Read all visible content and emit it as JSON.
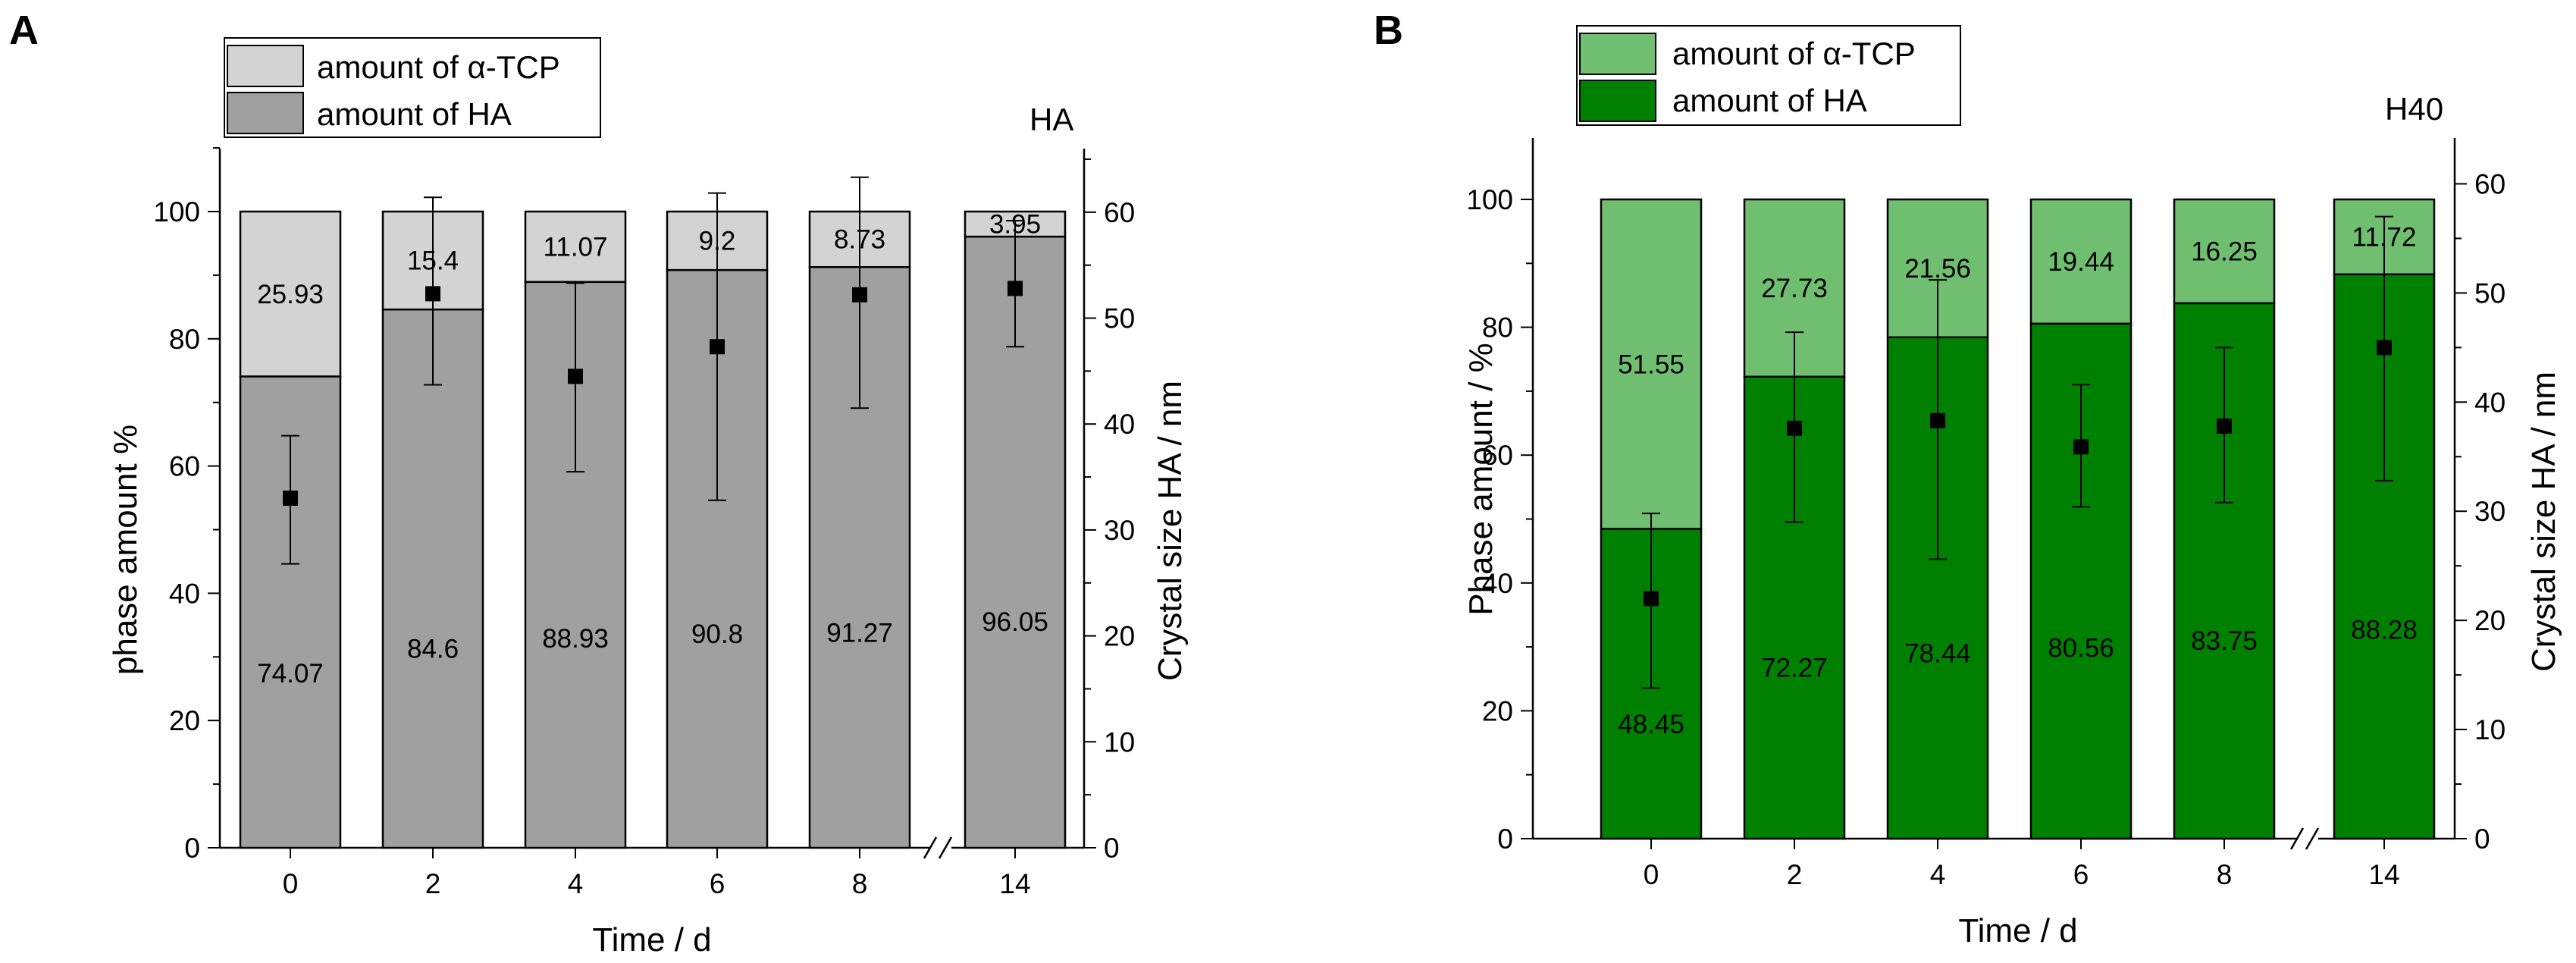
{
  "chart_data": [
    {
      "type": "bar",
      "stacked": true,
      "panel_label": "A",
      "sample_label": "HA",
      "categories": [
        "0",
        "2",
        "4",
        "6",
        "8",
        "14"
      ],
      "axis_break_between": [
        "8",
        "14"
      ],
      "xlabel": "Time / d",
      "ylabel": "phase amount %",
      "ylabel_right": "Crystal size HA / nm",
      "ylim": [
        0,
        110
      ],
      "ylim_right": [
        0,
        66
      ],
      "yticks": [
        0,
        20,
        40,
        60,
        80,
        100
      ],
      "yticks_right": [
        0,
        10,
        20,
        30,
        40,
        50,
        60
      ],
      "series": [
        {
          "name": "amount of HA",
          "color": "#a0a0a0",
          "values": [
            74.07,
            84.6,
            88.93,
            90.8,
            91.27,
            96.05
          ],
          "labels": [
            "74.07",
            "84.6",
            "88.93",
            "90.8",
            "91.27",
            "96.05"
          ]
        },
        {
          "name": "amount of α-TCP",
          "color": "#d3d3d3",
          "values": [
            25.93,
            15.4,
            11.07,
            9.2,
            8.73,
            3.95
          ],
          "labels": [
            "25.93",
            "15.4",
            "11.07",
            "9.2",
            "8.73",
            "3.95"
          ]
        }
      ],
      "crystal_size": {
        "values": [
          33.0,
          52.3,
          44.5,
          47.3,
          52.2,
          52.8
        ],
        "err_low": [
          26.8,
          43.7,
          35.5,
          32.8,
          41.5,
          47.3
        ],
        "err_high": [
          38.9,
          61.4,
          53.3,
          61.8,
          63.3,
          59.2
        ]
      }
    },
    {
      "type": "bar",
      "stacked": true,
      "panel_label": "B",
      "sample_label": "H40",
      "categories": [
        "0",
        "2",
        "4",
        "6",
        "8",
        "14"
      ],
      "axis_break_between": [
        "8",
        "14"
      ],
      "xlabel": "Time / d",
      "ylabel": "Phase amount / %",
      "ylabel_right": "Crystal size HA / nm",
      "ylim": [
        0,
        110
      ],
      "ylim_right": [
        0,
        64.2
      ],
      "yticks": [
        0,
        20,
        40,
        60,
        80,
        100
      ],
      "yticks_right": [
        0,
        10,
        20,
        30,
        40,
        50,
        60
      ],
      "series": [
        {
          "name": "amount of HA",
          "color": "#008000",
          "values": [
            48.45,
            72.27,
            78.44,
            80.56,
            83.75,
            88.28
          ],
          "labels": [
            "48.45",
            "72.27",
            "78.44",
            "80.56",
            "83.75",
            "88.28"
          ]
        },
        {
          "name": "amount of α-TCP",
          "color": "#70bf70",
          "values": [
            51.55,
            27.73,
            21.56,
            19.44,
            16.25,
            11.72
          ],
          "labels": [
            "51.55",
            "27.73",
            "21.56",
            "19.44",
            "16.25",
            "11.72"
          ]
        }
      ],
      "crystal_size": {
        "values": [
          22.0,
          37.6,
          38.3,
          35.9,
          37.8,
          45.0
        ],
        "err_low": [
          13.8,
          29.0,
          25.6,
          30.4,
          30.8,
          32.8
        ],
        "err_high": [
          29.8,
          46.4,
          51.2,
          41.6,
          45.0,
          57.0
        ]
      }
    }
  ]
}
